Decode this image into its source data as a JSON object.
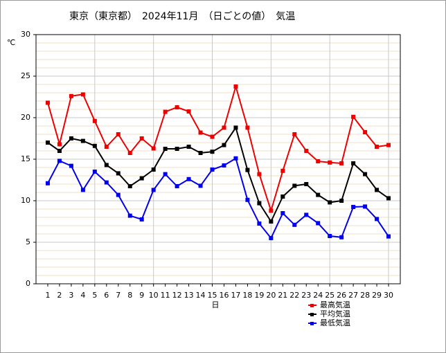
{
  "chart_data": {
    "type": "line",
    "title": "東京（東京都）　2024年11月　（日ごとの値）　気温",
    "y_label": "℃",
    "x_label": "日",
    "x": [
      1,
      2,
      3,
      4,
      5,
      6,
      7,
      8,
      9,
      10,
      11,
      12,
      13,
      14,
      15,
      16,
      17,
      18,
      19,
      20,
      21,
      22,
      23,
      24,
      25,
      26,
      27,
      28,
      29,
      30
    ],
    "xlim": [
      0,
      31
    ],
    "xticks": [
      1,
      2,
      3,
      4,
      5,
      6,
      7,
      8,
      9,
      10,
      11,
      12,
      13,
      14,
      15,
      16,
      17,
      18,
      19,
      20,
      21,
      22,
      23,
      24,
      25,
      26,
      27,
      28,
      29,
      30
    ],
    "ylim": [
      0,
      30
    ],
    "yticks": [
      0,
      5,
      10,
      15,
      20,
      25,
      30
    ],
    "grid": true,
    "series": [
      {
        "name": "最高気温",
        "color": "#ee0000",
        "values": [
          21.8,
          16.8,
          22.6,
          22.8,
          19.6,
          16.5,
          18.0,
          15.75,
          17.5,
          16.3,
          20.7,
          21.25,
          20.75,
          18.2,
          17.7,
          18.8,
          23.75,
          18.8,
          13.2,
          8.8,
          13.6,
          18.0,
          16.0,
          14.75,
          14.6,
          14.5,
          20.1,
          18.25,
          16.5,
          16.7
        ]
      },
      {
        "name": "平均気温",
        "color": "#000000",
        "values": [
          17.0,
          16.0,
          17.5,
          17.2,
          16.6,
          14.3,
          13.3,
          11.75,
          12.7,
          13.75,
          16.25,
          16.25,
          16.5,
          15.75,
          15.9,
          16.7,
          18.8,
          13.7,
          9.7,
          7.5,
          10.5,
          11.8,
          12.0,
          10.7,
          9.8,
          10.0,
          14.5,
          13.2,
          11.3,
          10.3
        ]
      },
      {
        "name": "最低気温",
        "color": "#0000ee",
        "values": [
          12.1,
          14.8,
          14.2,
          11.3,
          13.5,
          12.2,
          10.7,
          8.2,
          7.75,
          11.3,
          13.2,
          11.75,
          12.6,
          11.8,
          13.75,
          14.25,
          15.1,
          10.1,
          7.25,
          5.5,
          8.5,
          7.1,
          8.3,
          7.3,
          5.75,
          5.6,
          9.25,
          9.3,
          7.8,
          5.7
        ]
      }
    ]
  }
}
